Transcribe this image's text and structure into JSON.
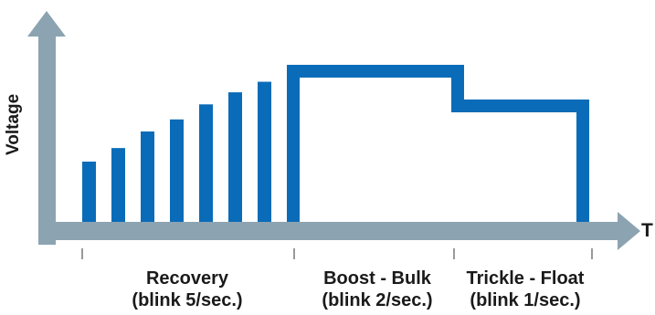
{
  "axes": {
    "y_label": "Voltage",
    "x_label": "T"
  },
  "phases": [
    {
      "name": "Recovery",
      "blink": "(blink 5/sec.)"
    },
    {
      "name": "Boost - Bulk",
      "blink": "(blink 2/sec.)"
    },
    {
      "name": "Trickle - Float",
      "blink": "(blink 1/sec.)"
    }
  ],
  "colors": {
    "axis": "#8ca3b1",
    "signal": "#0a6cb8",
    "text": "#1a1a1a"
  },
  "recovery_bar_levels": [
    0.4,
    0.49,
    0.6,
    0.68,
    0.78,
    0.86,
    0.93
  ],
  "boost_level": 1.0,
  "float_level": 0.77
}
